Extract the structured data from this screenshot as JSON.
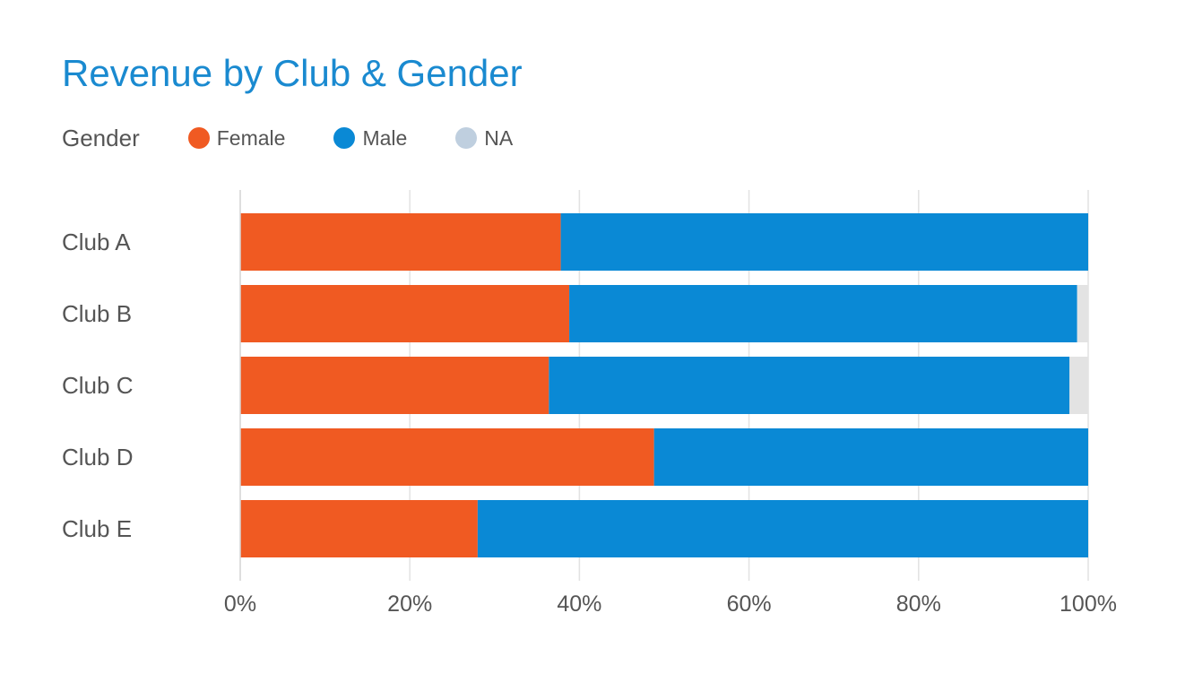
{
  "chart_data": {
    "type": "bar",
    "orientation": "horizontal",
    "stacked": true,
    "title": "Revenue by Club & Gender",
    "legend_title": "Gender",
    "legend_position": "top-left",
    "categories": [
      "Club A",
      "Club B",
      "Club C",
      "Club D",
      "Club E"
    ],
    "series": [
      {
        "name": "Female",
        "color": "#f05a22",
        "values": [
          37.8,
          38.8,
          36.4,
          48.8,
          28.0
        ]
      },
      {
        "name": "Male",
        "color": "#0a89d5",
        "values": [
          62.2,
          59.9,
          61.4,
          51.2,
          72.0
        ]
      },
      {
        "name": "NA",
        "color": "#e3e3e3",
        "legend_color": "#bfcfdf",
        "values": [
          0.0,
          1.3,
          2.2,
          0.0,
          0.0
        ]
      }
    ],
    "x_ticks": [
      "0%",
      "20%",
      "40%",
      "60%",
      "80%",
      "100%"
    ],
    "xlim": [
      0,
      100
    ],
    "xlabel": "",
    "ylabel": "",
    "grid": "vertical"
  }
}
